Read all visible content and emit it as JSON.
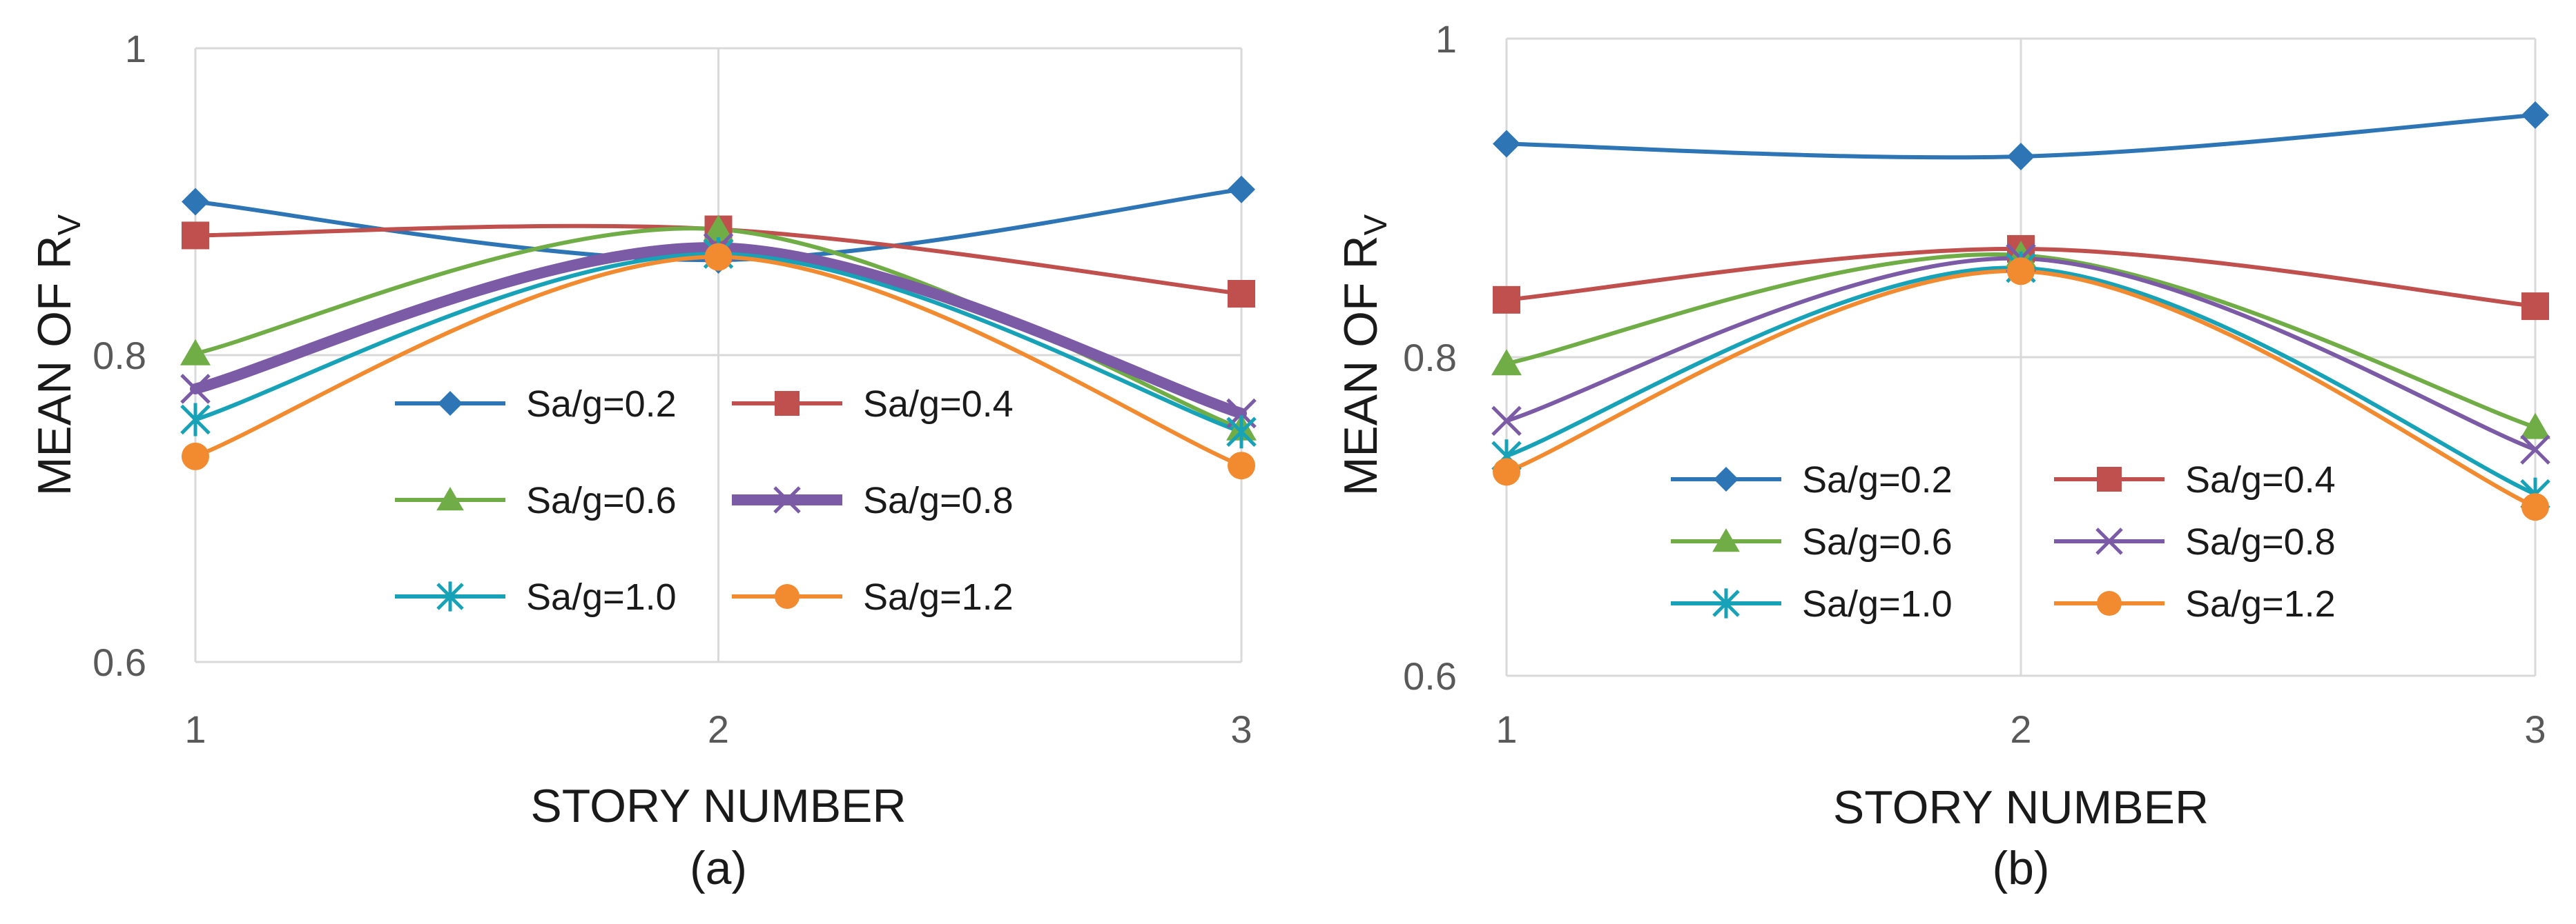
{
  "chart_data": [
    {
      "type": "line",
      "caption": "(a)",
      "xlabel": "STORY NUMBER",
      "ylabel": "MEAN OF R",
      "ylabel_sub": "V",
      "categories": [
        "1",
        "2",
        "3"
      ],
      "x_tick_labels": [
        "1",
        "2",
        "3"
      ],
      "y_tick_labels": [
        "0.6",
        "0.8",
        "1"
      ],
      "ylim": [
        0.6,
        1.0
      ],
      "y_ticks": [
        0.6,
        0.8,
        1.0
      ],
      "grid": true,
      "legend_position": "inside-bottom",
      "series": [
        {
          "name": "Sa/g=0.2",
          "values": [
            0.9,
            0.862,
            0.908
          ],
          "color": "#2E75B6",
          "marker": "diamond"
        },
        {
          "name": "Sa/g=0.4",
          "values": [
            0.878,
            0.882,
            0.84
          ],
          "color": "#C0504D",
          "marker": "square"
        },
        {
          "name": "Sa/g=0.6",
          "values": [
            0.801,
            0.882,
            0.752
          ],
          "color": "#70AD47",
          "marker": "triangle"
        },
        {
          "name": "Sa/g=0.8",
          "values": [
            0.778,
            0.87,
            0.762
          ],
          "color": "#7B5AA6",
          "marker": "x",
          "bold": true
        },
        {
          "name": "Sa/g=1.0",
          "values": [
            0.758,
            0.866,
            0.75
          ],
          "color": "#17A2B8",
          "marker": "star"
        },
        {
          "name": "Sa/g=1.2",
          "values": [
            0.734,
            0.864,
            0.728
          ],
          "color": "#F28A30",
          "marker": "circle"
        }
      ]
    },
    {
      "type": "line",
      "caption": "(b)",
      "xlabel": "STORY NUMBER",
      "ylabel": "MEAN OF R",
      "ylabel_sub": "V",
      "categories": [
        "1",
        "2",
        "3"
      ],
      "x_tick_labels": [
        "1",
        "2",
        "3"
      ],
      "y_tick_labels": [
        "0.6",
        "0.8",
        "1"
      ],
      "ylim": [
        0.6,
        1.0
      ],
      "y_ticks": [
        0.6,
        0.8,
        1.0
      ],
      "grid": true,
      "legend_position": "inside-bottom",
      "series": [
        {
          "name": "Sa/g=0.2",
          "values": [
            0.934,
            0.926,
            0.952
          ],
          "color": "#2E75B6",
          "marker": "diamond"
        },
        {
          "name": "Sa/g=0.4",
          "values": [
            0.836,
            0.868,
            0.832
          ],
          "color": "#C0504D",
          "marker": "square"
        },
        {
          "name": "Sa/g=0.6",
          "values": [
            0.796,
            0.864,
            0.756
          ],
          "color": "#70AD47",
          "marker": "triangle"
        },
        {
          "name": "Sa/g=0.8",
          "values": [
            0.76,
            0.862,
            0.742
          ],
          "color": "#7B5AA6",
          "marker": "x"
        },
        {
          "name": "Sa/g=1.0",
          "values": [
            0.738,
            0.856,
            0.714
          ],
          "color": "#17A2B8",
          "marker": "star"
        },
        {
          "name": "Sa/g=1.2",
          "values": [
            0.728,
            0.854,
            0.706
          ],
          "color": "#F28A30",
          "marker": "circle"
        }
      ]
    }
  ]
}
